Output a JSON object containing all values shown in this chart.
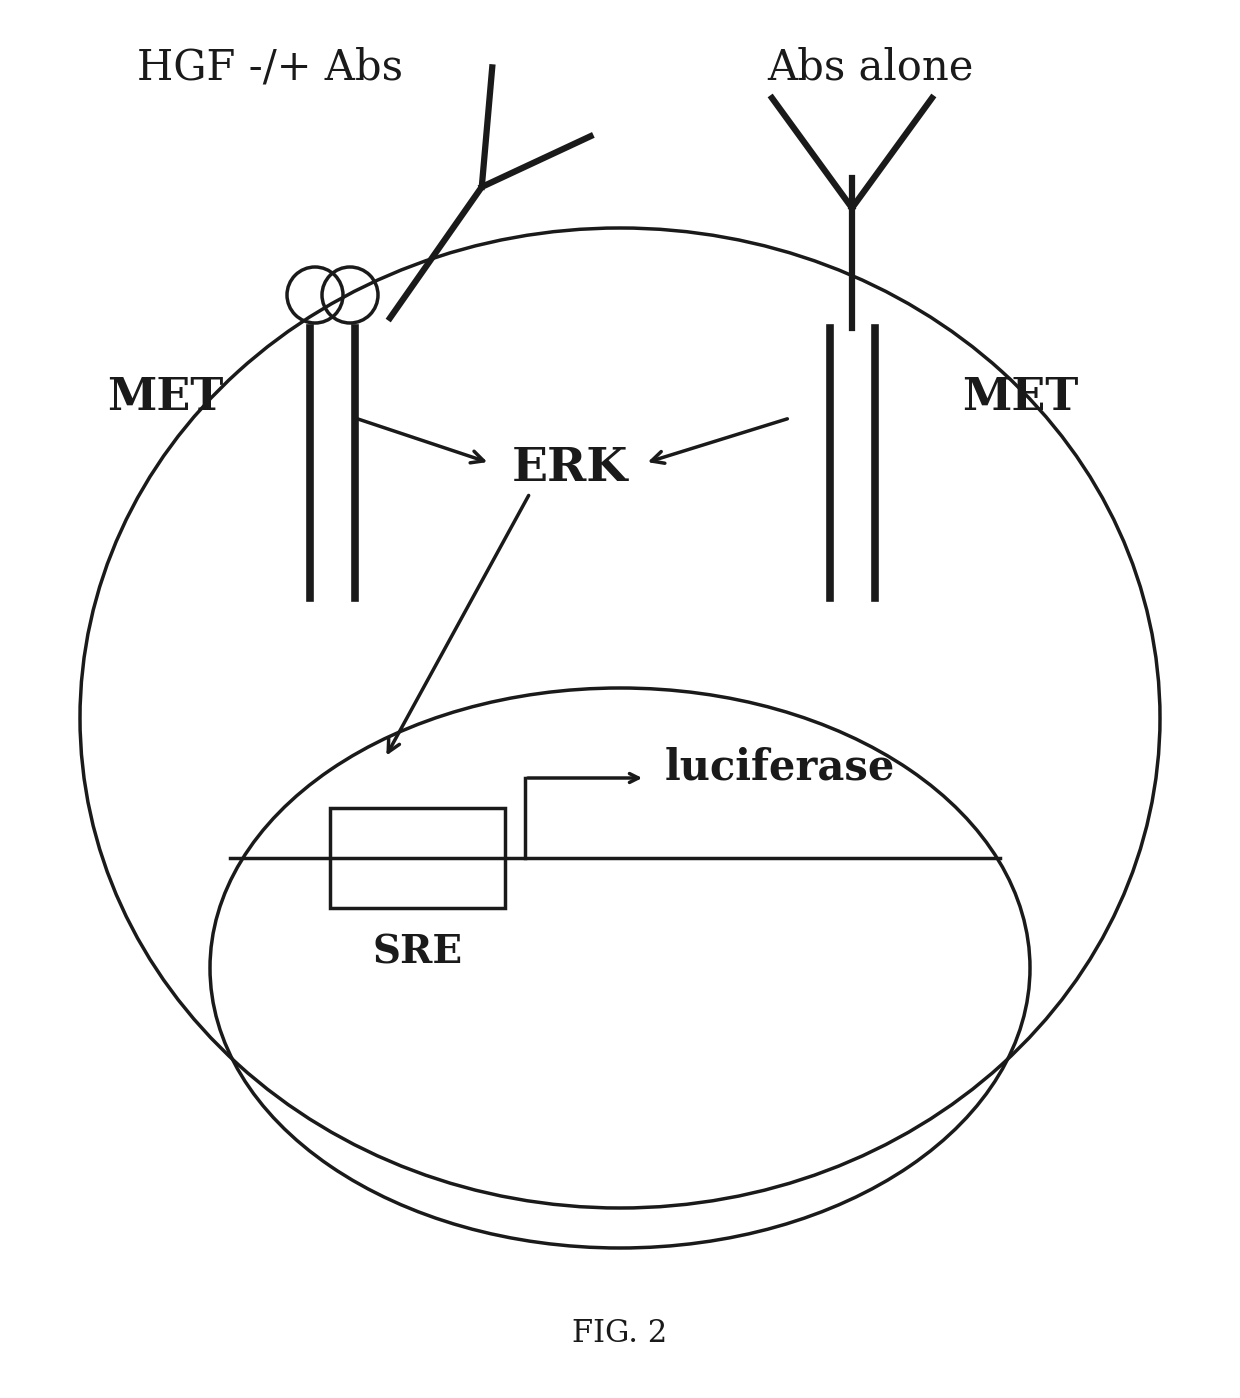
{
  "title": "FIG. 2",
  "header_left": "HGF -/+ Abs",
  "header_right": "Abs alone",
  "label_met_left": "MET",
  "label_met_right": "MET",
  "label_erk": "ERK",
  "label_luciferase": "luciferase",
  "label_sre": "SRE",
  "bg_color": "#ffffff",
  "line_color": "#1a1a1a",
  "text_color": "#1a1a1a",
  "header_fontsize": 30,
  "label_fontsize": 32,
  "erk_fontsize": 34,
  "luci_fontsize": 30,
  "sre_fontsize": 28,
  "fig_label_fontsize": 22,
  "lw_receptor": 5.5,
  "lw_ellipse": 2.5,
  "lw_arrow": 2.5,
  "lw_dna": 2.5,
  "lw_ab": 4.5
}
